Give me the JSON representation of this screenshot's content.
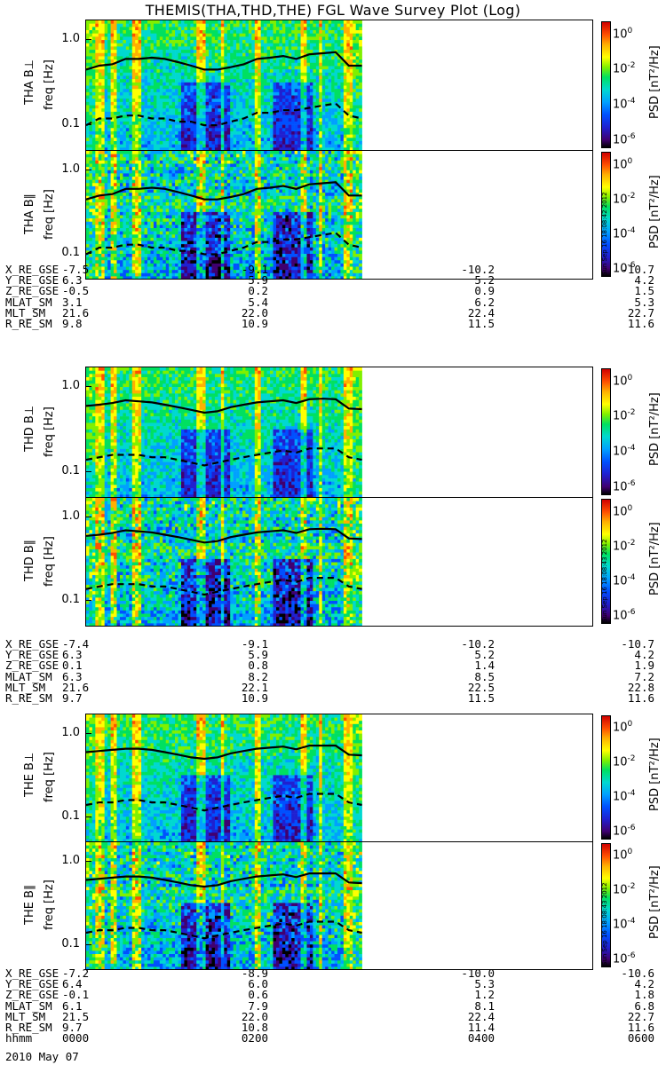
{
  "title": "THEMIS(THA,THD,THE) FGL Wave Survey Plot (Log)",
  "ytick_labels": [
    "1.0",
    "0.1"
  ],
  "colorbar": {
    "label": "PSD [nT²/Hz]",
    "ticks": [
      {
        "base": "10",
        "exp": "0"
      },
      {
        "base": "10",
        "exp": "-2"
      },
      {
        "base": "10",
        "exp": "-4"
      },
      {
        "base": "10",
        "exp": "-6"
      }
    ],
    "colors": [
      "#000000",
      "#400070",
      "#2020d0",
      "#0050ff",
      "#00a0ff",
      "#00d8d0",
      "#00e060",
      "#80f000",
      "#ffff00",
      "#ffb000",
      "#ff5000",
      "#d00000"
    ]
  },
  "stamps": [
    "Sun Sep 16 18:08:42 2012",
    "Sun Sep 16 18:08:43 2012",
    "Sun Sep 16 18:08:43 2012"
  ],
  "orbit_groups": [
    {
      "rows": [
        {
          "name": "X_RE_GSE",
          "vals": [
            "-7.5",
            "-9.1",
            "-10.2",
            "-10.7"
          ]
        },
        {
          "name": "Y_RE_GSE",
          "vals": [
            "6.3",
            "5.9",
            "5.2",
            "4.2"
          ]
        },
        {
          "name": "Z_RE_GSE",
          "vals": [
            "-0.5",
            "0.2",
            "0.9",
            "1.5"
          ]
        },
        {
          "name": "MLAT_SM",
          "vals": [
            "3.1",
            "5.4",
            "6.2",
            "5.3"
          ]
        },
        {
          "name": "MLT_SM",
          "vals": [
            "21.6",
            "22.0",
            "22.4",
            "22.7"
          ]
        },
        {
          "name": "R_RE_SM",
          "vals": [
            "9.8",
            "10.9",
            "11.5",
            "11.6"
          ]
        }
      ]
    },
    {
      "rows": [
        {
          "name": "X_RE_GSE",
          "vals": [
            "-7.4",
            "-9.1",
            "-10.2",
            "-10.7"
          ]
        },
        {
          "name": "Y_RE_GSE",
          "vals": [
            "6.3",
            "5.9",
            "5.2",
            "4.2"
          ]
        },
        {
          "name": "Z_RE_GSE",
          "vals": [
            "0.1",
            "0.8",
            "1.4",
            "1.9"
          ]
        },
        {
          "name": "MLAT_SM",
          "vals": [
            "6.3",
            "8.2",
            "8.5",
            "7.2"
          ]
        },
        {
          "name": "MLT_SM",
          "vals": [
            "21.6",
            "22.1",
            "22.5",
            "22.8"
          ]
        },
        {
          "name": "R_RE_SM",
          "vals": [
            "9.7",
            "10.9",
            "11.5",
            "11.6"
          ]
        }
      ]
    },
    {
      "rows": [
        {
          "name": "X_RE_GSE",
          "vals": [
            "-7.2",
            "-8.9",
            "-10.0",
            "-10.6"
          ]
        },
        {
          "name": "Y_RE_GSE",
          "vals": [
            "6.4",
            "6.0",
            "5.3",
            "4.2"
          ]
        },
        {
          "name": "Z_RE_GSE",
          "vals": [
            "-0.1",
            "0.6",
            "1.2",
            "1.8"
          ]
        },
        {
          "name": "MLAT_SM",
          "vals": [
            "6.1",
            "7.9",
            "8.1",
            "6.8"
          ]
        },
        {
          "name": "MLT_SM",
          "vals": [
            "21.5",
            "22.0",
            "22.4",
            "22.7"
          ]
        },
        {
          "name": "R_RE_SM",
          "vals": [
            "9.7",
            "10.8",
            "11.4",
            "11.6"
          ]
        },
        {
          "name": "hhmm",
          "vals": [
            "0000",
            "0200",
            "0400",
            "0600"
          ]
        }
      ]
    }
  ],
  "date_label": "2010 May 07",
  "chart_data": {
    "type": "heatmap",
    "title": "THEMIS(THA,THD,THE) FGL Wave Survey Plot (Log)",
    "xlabel": "hhmm",
    "x_tick_labels": [
      "0000",
      "0200",
      "0400",
      "0600"
    ],
    "x_range": [
      "0000",
      "0600"
    ],
    "ylabel": "freq [Hz]",
    "y_scale": "log",
    "y_tick_labels": [
      "1.0",
      "0.1"
    ],
    "colorbar_label": "PSD [nT²/Hz]",
    "colorbar_ticks": [
      "10^0",
      "10^-2",
      "10^-4",
      "10^-6"
    ],
    "data_end": "0300",
    "panels": [
      {
        "label": "THA B⊥",
        "ylabel": "freq [Hz]",
        "solid_line": [
          0.45,
          0.5,
          0.52,
          0.6,
          0.6,
          0.62,
          0.6,
          0.55,
          0.5,
          0.45,
          0.45,
          0.48,
          0.52,
          0.6,
          0.62,
          0.65,
          0.6,
          0.68,
          0.7,
          0.72,
          0.5,
          0.5
        ],
        "dashed_line": [
          0.1,
          0.12,
          0.12,
          0.13,
          0.13,
          0.12,
          0.12,
          0.11,
          0.11,
          0.1,
          0.1,
          0.11,
          0.12,
          0.14,
          0.14,
          0.15,
          0.15,
          0.16,
          0.17,
          0.18,
          0.13,
          0.12
        ]
      },
      {
        "label": "THA B∥",
        "ylabel": "freq [Hz]",
        "solid_line": [
          0.45,
          0.5,
          0.52,
          0.6,
          0.6,
          0.62,
          0.6,
          0.55,
          0.5,
          0.45,
          0.45,
          0.48,
          0.52,
          0.6,
          0.62,
          0.65,
          0.6,
          0.68,
          0.7,
          0.72,
          0.5,
          0.5
        ],
        "dashed_line": [
          0.1,
          0.12,
          0.12,
          0.13,
          0.13,
          0.12,
          0.12,
          0.11,
          0.11,
          0.1,
          0.1,
          0.11,
          0.12,
          0.14,
          0.14,
          0.15,
          0.15,
          0.16,
          0.17,
          0.18,
          0.13,
          0.12
        ]
      },
      {
        "label": "THD B⊥",
        "ylabel": "freq [Hz]",
        "solid_line": [
          0.6,
          0.62,
          0.65,
          0.7,
          0.68,
          0.66,
          0.62,
          0.58,
          0.54,
          0.5,
          0.52,
          0.58,
          0.62,
          0.66,
          0.68,
          0.7,
          0.65,
          0.72,
          0.73,
          0.72,
          0.56,
          0.55
        ],
        "dashed_line": [
          0.14,
          0.15,
          0.16,
          0.16,
          0.16,
          0.15,
          0.15,
          0.14,
          0.13,
          0.12,
          0.13,
          0.14,
          0.15,
          0.16,
          0.17,
          0.18,
          0.17,
          0.19,
          0.19,
          0.19,
          0.15,
          0.14
        ]
      },
      {
        "label": "THD B∥",
        "ylabel": "freq [Hz]",
        "solid_line": [
          0.6,
          0.62,
          0.65,
          0.7,
          0.68,
          0.66,
          0.62,
          0.58,
          0.54,
          0.5,
          0.52,
          0.58,
          0.62,
          0.66,
          0.68,
          0.7,
          0.65,
          0.72,
          0.73,
          0.72,
          0.56,
          0.55
        ],
        "dashed_line": [
          0.14,
          0.15,
          0.16,
          0.16,
          0.16,
          0.15,
          0.15,
          0.14,
          0.13,
          0.12,
          0.13,
          0.14,
          0.15,
          0.16,
          0.17,
          0.18,
          0.17,
          0.19,
          0.19,
          0.19,
          0.15,
          0.14
        ]
      },
      {
        "label": "THE B⊥",
        "ylabel": "freq [Hz]",
        "solid_line": [
          0.6,
          0.62,
          0.64,
          0.66,
          0.66,
          0.64,
          0.6,
          0.56,
          0.52,
          0.5,
          0.52,
          0.58,
          0.62,
          0.66,
          0.68,
          0.7,
          0.65,
          0.72,
          0.72,
          0.72,
          0.56,
          0.55
        ],
        "dashed_line": [
          0.14,
          0.15,
          0.15,
          0.16,
          0.16,
          0.15,
          0.15,
          0.14,
          0.13,
          0.12,
          0.13,
          0.14,
          0.15,
          0.16,
          0.17,
          0.18,
          0.17,
          0.19,
          0.19,
          0.19,
          0.15,
          0.14
        ]
      },
      {
        "label": "THE B∥",
        "ylabel": "freq [Hz]",
        "solid_line": [
          0.6,
          0.62,
          0.64,
          0.66,
          0.66,
          0.64,
          0.6,
          0.56,
          0.52,
          0.5,
          0.52,
          0.58,
          0.62,
          0.66,
          0.68,
          0.7,
          0.65,
          0.72,
          0.72,
          0.72,
          0.56,
          0.55
        ],
        "dashed_line": [
          0.14,
          0.15,
          0.15,
          0.16,
          0.16,
          0.15,
          0.15,
          0.14,
          0.13,
          0.12,
          0.13,
          0.14,
          0.15,
          0.16,
          0.17,
          0.18,
          0.17,
          0.19,
          0.19,
          0.19,
          0.15,
          0.14
        ]
      }
    ]
  }
}
